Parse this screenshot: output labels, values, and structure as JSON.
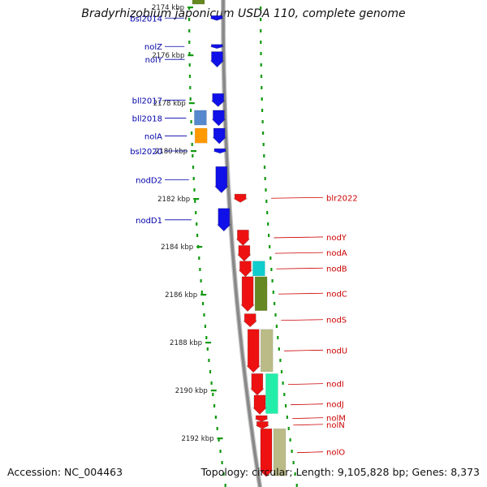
{
  "title": "Bradyrhizobium japonicum USDA 110, complete genome",
  "footer": {
    "accession": "Accession: NC_004463",
    "topology": "Topology: circular; Length: 9,105,828 bp; Genes: 8,373"
  },
  "colors": {
    "forward_gene": "#1010e8",
    "reverse_gene": "#ee1111",
    "forward_label": "#0000aa",
    "reverse_label": "#cc0000",
    "tick": "#119911",
    "backbone": "#888888",
    "cog_cyan": "#11cccc",
    "cog_olive": "#668822",
    "cog_khaki": "#bbbb88",
    "cog_spring": "#22eeaa",
    "cog_steelblue": "#5588cc",
    "cog_orange": "#ff9900"
  },
  "chart_data": {
    "type": "genome_map",
    "scale_unit": "kbp",
    "ticks": [
      {
        "kbp": 2174,
        "label": "2174 kbp"
      },
      {
        "kbp": 2176,
        "label": "2176 kbp"
      },
      {
        "kbp": 2178,
        "label": "2178 kbp"
      },
      {
        "kbp": 2180,
        "label": "2180 kbp"
      },
      {
        "kbp": 2182,
        "label": "2182 kbp"
      },
      {
        "kbp": 2184,
        "label": "2184 kbp"
      },
      {
        "kbp": 2186,
        "label": "2186 kbp"
      },
      {
        "kbp": 2188,
        "label": "2188 kbp"
      },
      {
        "kbp": 2190,
        "label": "2190 kbp"
      },
      {
        "kbp": 2192,
        "label": "2192 kbp"
      }
    ],
    "forward_genes": [
      {
        "name": "bsl2014",
        "start": 2174.35,
        "end": 2174.55
      },
      {
        "name": "nolZ",
        "start": 2175.55,
        "end": 2175.72
      },
      {
        "name": "nolY",
        "start": 2175.85,
        "end": 2176.5
      },
      {
        "name": "bll2017",
        "start": 2177.6,
        "end": 2178.15
      },
      {
        "name": "bll2018",
        "start": 2178.3,
        "end": 2178.95
      },
      {
        "name": "nolA",
        "start": 2179.05,
        "end": 2179.7
      },
      {
        "name": "bsl2020",
        "start": 2179.9,
        "end": 2180.1
      },
      {
        "name": "nodD2",
        "start": 2180.65,
        "end": 2181.75
      },
      {
        "name": "nodD1",
        "start": 2182.4,
        "end": 2183.35
      }
    ],
    "reverse_genes": [
      {
        "name": "blr2022",
        "start": 2181.8,
        "end": 2182.15
      },
      {
        "name": "nodY",
        "start": 2183.3,
        "end": 2183.95
      },
      {
        "name": "nodA",
        "start": 2183.95,
        "end": 2184.6
      },
      {
        "name": "nodB",
        "start": 2184.6,
        "end": 2185.25
      },
      {
        "name": "nodC",
        "start": 2185.25,
        "end": 2186.7
      },
      {
        "name": "nodS",
        "start": 2186.8,
        "end": 2187.35
      },
      {
        "name": "nodU",
        "start": 2187.45,
        "end": 2189.25
      },
      {
        "name": "nodI",
        "start": 2189.3,
        "end": 2190.2
      },
      {
        "name": "nodJ",
        "start": 2190.2,
        "end": 2191.0
      },
      {
        "name": "nolM",
        "start": 2191.05,
        "end": 2191.3
      },
      {
        "name": "nolN",
        "start": 2191.3,
        "end": 2191.6
      },
      {
        "name": "nolO",
        "start": 2191.6,
        "end": 2193.6
      }
    ],
    "cog_boxes": [
      {
        "strand": "forward",
        "color": "cog_olive",
        "start": 2173.6,
        "end": 2173.9
      },
      {
        "strand": "forward",
        "color": "cog_steelblue",
        "start": 2178.3,
        "end": 2178.95
      },
      {
        "strand": "forward",
        "color": "cog_orange",
        "start": 2179.05,
        "end": 2179.7
      },
      {
        "strand": "reverse",
        "color": "cog_cyan",
        "start": 2184.6,
        "end": 2185.25
      },
      {
        "strand": "reverse",
        "color": "cog_olive",
        "start": 2185.25,
        "end": 2186.7
      },
      {
        "strand": "reverse",
        "color": "cog_khaki",
        "start": 2187.45,
        "end": 2189.25
      },
      {
        "strand": "reverse",
        "color": "cog_spring",
        "start": 2189.3,
        "end": 2191.0
      },
      {
        "strand": "reverse",
        "color": "cog_khaki",
        "start": 2191.6,
        "end": 2193.6
      }
    ]
  }
}
